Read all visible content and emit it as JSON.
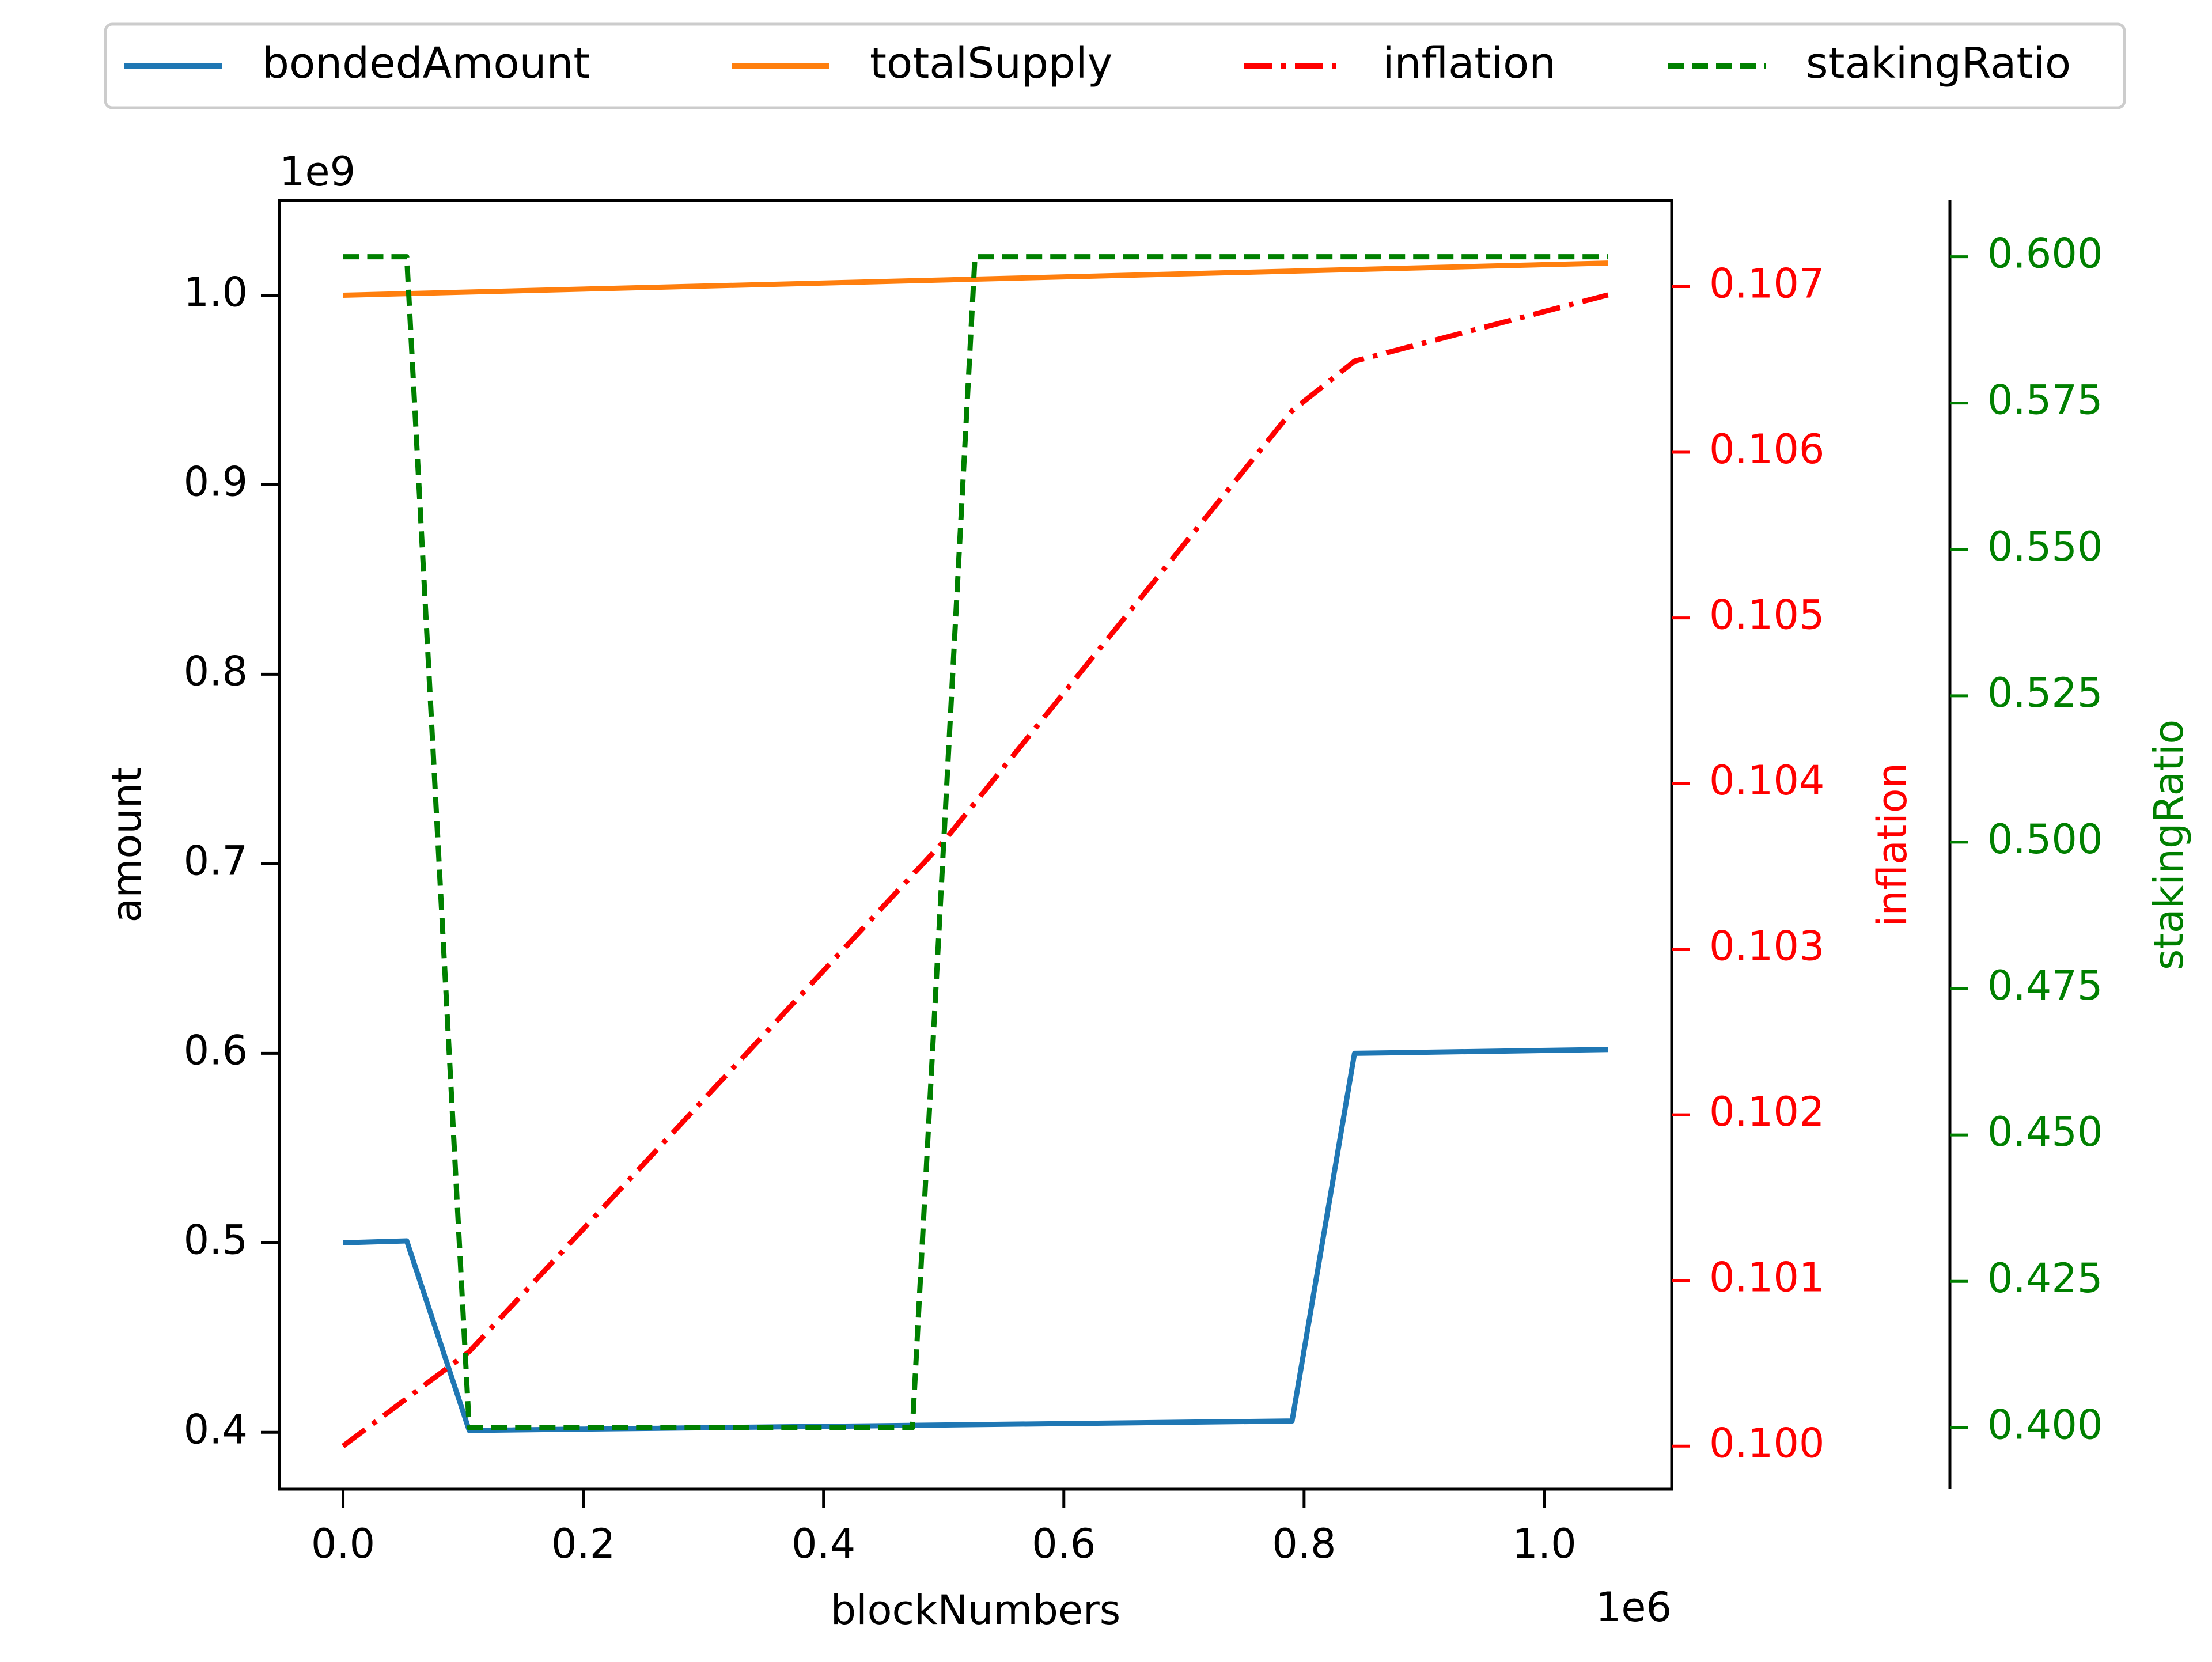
{
  "chart_data": {
    "type": "line",
    "title": "",
    "xlabel": "blockNumbers",
    "x_offset_label": "1e6",
    "x_scale": 1000000,
    "xlim": [
      -53000,
      1106000
    ],
    "x_ticks": [
      0,
      200000,
      400000,
      600000,
      800000,
      1000000
    ],
    "x_tick_labels": [
      "0.0",
      "0.2",
      "0.4",
      "0.6",
      "0.8",
      "1.0"
    ],
    "axes": {
      "amount": {
        "label": "amount",
        "offset_label": "1e9",
        "lim": [
          370000000,
          1050000000
        ],
        "ticks": [
          400000000,
          500000000,
          600000000,
          700000000,
          800000000,
          900000000,
          1000000000
        ],
        "tick_labels": [
          "0.4",
          "0.5",
          "0.6",
          "0.7",
          "0.8",
          "0.9",
          "1.0"
        ],
        "color": "#000000"
      },
      "inflation": {
        "label": "inflation",
        "lim": [
          0.09974,
          0.10752
        ],
        "ticks": [
          0.1,
          0.101,
          0.102,
          0.103,
          0.104,
          0.105,
          0.106,
          0.107
        ],
        "tick_labels": [
          "0.100",
          "0.101",
          "0.102",
          "0.103",
          "0.104",
          "0.105",
          "0.106",
          "0.107"
        ],
        "color": "#ff0000"
      },
      "stakingRatio": {
        "label": "stakingRatio",
        "lim": [
          0.3895,
          0.6096
        ],
        "ticks": [
          0.4,
          0.425,
          0.45,
          0.475,
          0.5,
          0.525,
          0.55,
          0.575,
          0.6
        ],
        "tick_labels": [
          "0.400",
          "0.425",
          "0.450",
          "0.475",
          "0.500",
          "0.525",
          "0.550",
          "0.575",
          "0.600"
        ],
        "color": "#008000"
      }
    },
    "legend": {
      "placement": "top-center, outside plot",
      "entries": [
        "bondedAmount",
        "totalSupply",
        "inflation",
        "stakingRatio"
      ]
    },
    "grid": false,
    "series": [
      {
        "name": "bondedAmount",
        "axis": "amount",
        "color": "#1f77b4",
        "style": "solid",
        "x": [
          0,
          53000,
          105000,
          790000,
          842000,
          1053000
        ],
        "y": [
          500000000,
          501000000,
          401000000,
          406000000,
          600000000,
          602000000
        ]
      },
      {
        "name": "totalSupply",
        "axis": "amount",
        "color": "#ff7f0e",
        "style": "solid",
        "x": [
          0,
          1053000
        ],
        "y": [
          1000000000,
          1017000000
        ]
      },
      {
        "name": "inflation",
        "axis": "inflation",
        "color": "#ff0000",
        "style": "dashdot",
        "x": [
          0,
          105000,
          500000,
          790000,
          842000,
          1053000
        ],
        "y": [
          0.1,
          0.10057,
          0.10365,
          0.10625,
          0.10655,
          0.10695
        ]
      },
      {
        "name": "stakingRatio",
        "axis": "stakingRatio",
        "color": "#008000",
        "style": "dashed",
        "x": [
          0,
          53000,
          105000,
          474000,
          526000,
          1053000
        ],
        "y": [
          0.6,
          0.6,
          0.4,
          0.4,
          0.6,
          0.6
        ]
      }
    ]
  }
}
